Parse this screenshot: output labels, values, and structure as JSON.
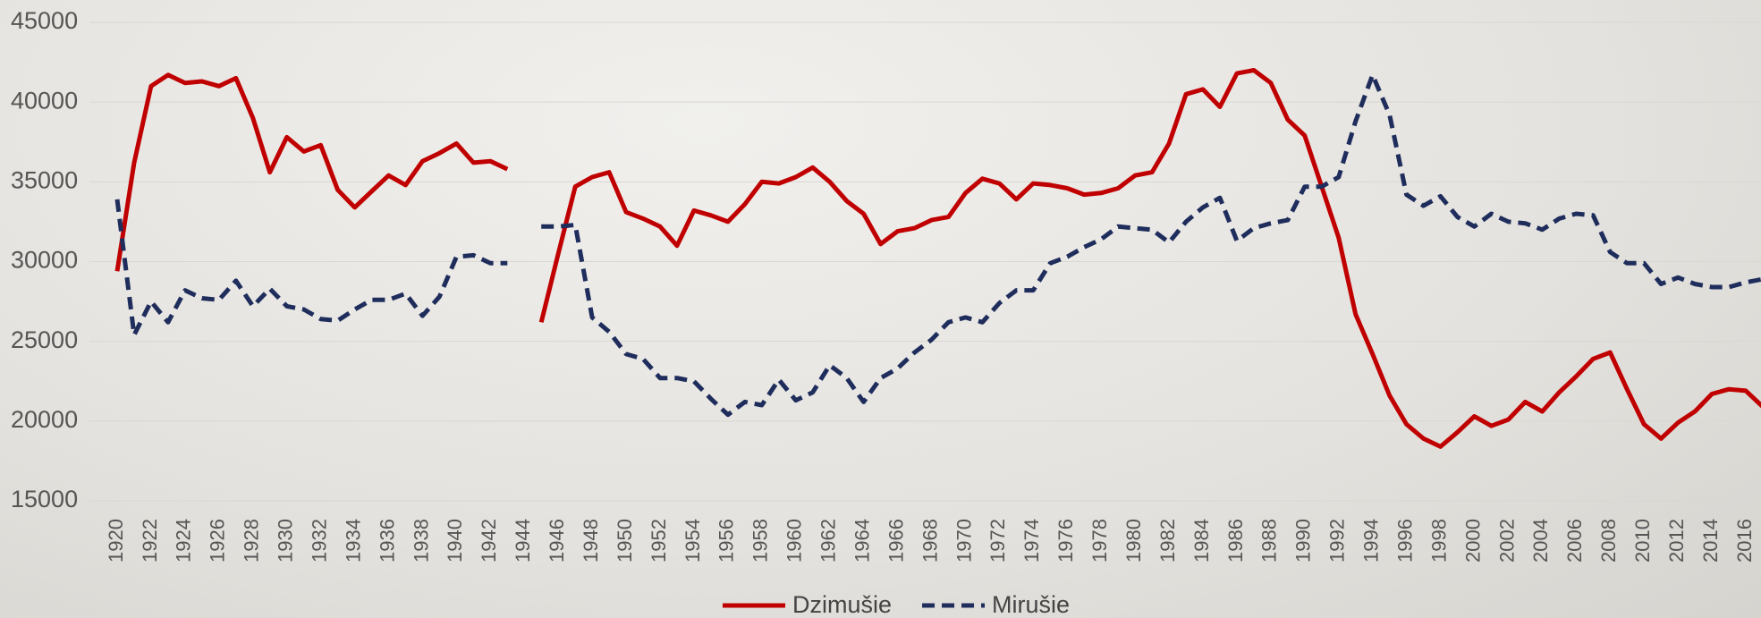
{
  "chart_data": {
    "type": "line",
    "x": [
      1920,
      1921,
      1922,
      1923,
      1924,
      1925,
      1926,
      1927,
      1928,
      1929,
      1930,
      1931,
      1932,
      1933,
      1934,
      1935,
      1936,
      1937,
      1938,
      1939,
      1940,
      1941,
      1942,
      1943,
      1944,
      1945,
      1946,
      1947,
      1948,
      1949,
      1950,
      1951,
      1952,
      1953,
      1954,
      1955,
      1956,
      1957,
      1958,
      1959,
      1960,
      1961,
      1962,
      1963,
      1964,
      1965,
      1966,
      1967,
      1968,
      1969,
      1970,
      1971,
      1972,
      1973,
      1974,
      1975,
      1976,
      1977,
      1978,
      1979,
      1980,
      1981,
      1982,
      1983,
      1984,
      1985,
      1986,
      1987,
      1988,
      1989,
      1990,
      1991,
      1992,
      1993,
      1994,
      1995,
      1996,
      1997,
      1998,
      1999,
      2000,
      2001,
      2002,
      2003,
      2004,
      2005,
      2006,
      2007,
      2008,
      2009,
      2010,
      2011,
      2012,
      2013,
      2014,
      2015,
      2016,
      2017
    ],
    "series": [
      {
        "name": "Dzimušie",
        "color": "#c00000",
        "dash": false,
        "values": [
          29400,
          36200,
          41000,
          41700,
          41200,
          41300,
          41000,
          41500,
          39000,
          35600,
          37800,
          36900,
          37300,
          34500,
          33400,
          34400,
          35400,
          34800,
          36300,
          36800,
          37400,
          36200,
          36300,
          35800,
          null,
          26200,
          30500,
          34700,
          35300,
          35600,
          33100,
          32700,
          32200,
          31000,
          33200,
          32900,
          32500,
          33600,
          35000,
          34900,
          35300,
          35900,
          35000,
          33800,
          33000,
          31100,
          31900,
          32100,
          32600,
          32800,
          34300,
          35200,
          34900,
          33900,
          34900,
          34800,
          34600,
          34200,
          34300,
          34600,
          35400,
          35600,
          37400,
          40500,
          40800,
          39700,
          41800,
          42000,
          41200,
          38900,
          37900,
          34700,
          31500,
          26700,
          24200,
          21600,
          19800,
          18900,
          18400,
          19300,
          20300,
          19700,
          20100,
          21200,
          20600,
          21800,
          22800,
          23900,
          24300,
          22000,
          19800,
          18900,
          19900,
          20600,
          21700,
          22000,
          21900,
          20900
        ]
      },
      {
        "name": "Mirušie",
        "color": "#1f2d5c",
        "dash": true,
        "values": [
          33900,
          25400,
          27500,
          26200,
          28200,
          27700,
          27600,
          28800,
          27200,
          28300,
          27200,
          27000,
          26400,
          26300,
          27000,
          27600,
          27600,
          28000,
          26600,
          27800,
          30300,
          30400,
          29900,
          29900,
          null,
          32200,
          32200,
          32300,
          26500,
          25600,
          24200,
          23900,
          22700,
          22700,
          22500,
          21400,
          20400,
          21200,
          21000,
          22600,
          21300,
          21800,
          23500,
          22700,
          21200,
          22700,
          23300,
          24300,
          25100,
          26200,
          26500,
          26200,
          27400,
          28200,
          28200,
          29900,
          30300,
          30900,
          31400,
          32200,
          32100,
          32000,
          31200,
          32500,
          33400,
          34000,
          31300,
          32100,
          32400,
          32600,
          34700,
          34700,
          35300,
          38800,
          41700,
          39200,
          34200,
          33500,
          34100,
          32800,
          32200,
          33000,
          32500,
          32400,
          32000,
          32700,
          33000,
          32900,
          30600,
          29900,
          29900,
          28600,
          29000,
          28600,
          28400,
          28400,
          28700,
          28900
        ]
      }
    ],
    "xlim": [
      1920,
      2017
    ],
    "xticks": [
      1920,
      1922,
      1924,
      1926,
      1928,
      1930,
      1932,
      1934,
      1936,
      1938,
      1940,
      1942,
      1944,
      1946,
      1948,
      1950,
      1952,
      1954,
      1956,
      1958,
      1960,
      1962,
      1964,
      1966,
      1968,
      1970,
      1972,
      1974,
      1976,
      1978,
      1980,
      1982,
      1984,
      1986,
      1988,
      1990,
      1992,
      1994,
      1996,
      1998,
      2000,
      2002,
      2004,
      2006,
      2008,
      2010,
      2012,
      2014,
      2016
    ],
    "ylim": [
      15000,
      45000
    ],
    "yticks": [
      15000,
      20000,
      25000,
      30000,
      35000,
      40000,
      45000
    ],
    "grid": true,
    "legend": "bottom"
  }
}
